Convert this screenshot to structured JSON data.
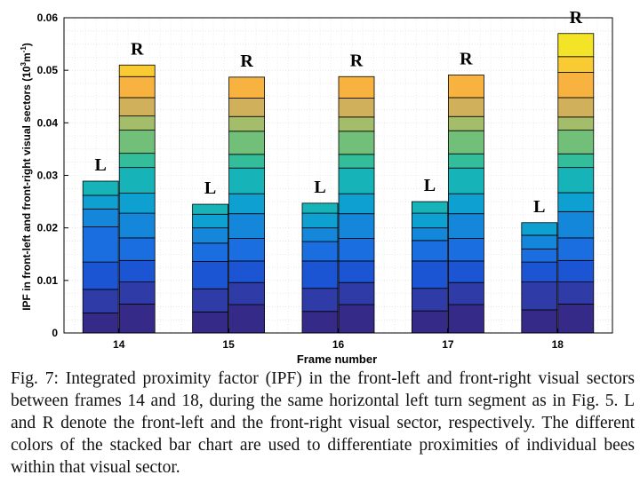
{
  "chart_data": {
    "type": "bar",
    "stacked": true,
    "grouped": true,
    "xlabel": "Frame number",
    "ylabel_main": "IPF in front-left and front-right visual sectors (10",
    "ylabel_sup1": "3",
    "ylabel_mid": "m",
    "ylabel_sup2": "-1",
    "ylabel_end": ")",
    "ylim": [
      0,
      0.06
    ],
    "yticks": [
      "0",
      "0.01",
      "0.02",
      "0.03",
      "0.04",
      "0.05",
      "0.06"
    ],
    "ytick_values": [
      0,
      0.01,
      0.02,
      0.03,
      0.04,
      0.05,
      0.06
    ],
    "grid": true,
    "categories": [
      "14",
      "15",
      "16",
      "17",
      "18"
    ],
    "colors": [
      "#352a87",
      "#2f3ba6",
      "#1b55d3",
      "#1a6ee0",
      "#1487db",
      "#0da0d0",
      "#16b3b8",
      "#34bd9b",
      "#71bf79",
      "#a3bd6a",
      "#d0b05a",
      "#f7b23f",
      "#f9cb32",
      "#f4e427",
      "#f9fb0e"
    ],
    "groups": [
      {
        "frame": "14",
        "bars": [
          {
            "label": "L",
            "segments": [
              0.0038,
              0.0045,
              0.0052,
              0.0067,
              0.0034,
              0.0026,
              0.0027
            ]
          },
          {
            "label": "R",
            "segments": [
              0.0055,
              0.0042,
              0.0041,
              0.0043,
              0.0047,
              0.0038,
              0.0049,
              0.0027,
              0.0044,
              0.0027,
              0.0035,
              0.004,
              0.0022
            ]
          }
        ]
      },
      {
        "frame": "15",
        "bars": [
          {
            "label": "L",
            "segments": [
              0.004,
              0.0044,
              0.0052,
              0.0035,
              0.0029,
              0.0026,
              0.0019
            ]
          },
          {
            "label": "R",
            "segments": [
              0.0054,
              0.0042,
              0.0041,
              0.0043,
              0.0047,
              0.0038,
              0.0049,
              0.0026,
              0.0044,
              0.0028,
              0.0035,
              0.004
            ]
          }
        ]
      },
      {
        "frame": "16",
        "bars": [
          {
            "label": "L",
            "segments": [
              0.0041,
              0.0044,
              0.0052,
              0.0037,
              0.0026,
              0.0028,
              0.0019
            ]
          },
          {
            "label": "R",
            "segments": [
              0.0054,
              0.0042,
              0.0041,
              0.0043,
              0.0047,
              0.0038,
              0.0049,
              0.0026,
              0.0044,
              0.0027,
              0.0036,
              0.0041
            ]
          }
        ]
      },
      {
        "frame": "17",
        "bars": [
          {
            "label": "L",
            "segments": [
              0.0042,
              0.0043,
              0.0052,
              0.0039,
              0.0024,
              0.0028,
              0.0022
            ]
          },
          {
            "label": "R",
            "segments": [
              0.0054,
              0.0042,
              0.0041,
              0.0043,
              0.0047,
              0.0038,
              0.0049,
              0.0027,
              0.0044,
              0.0027,
              0.0036,
              0.0043
            ]
          }
        ]
      },
      {
        "frame": "18",
        "bars": [
          {
            "label": "L",
            "segments": [
              0.0044,
              0.0053,
              0.0038,
              0.0025,
              0.0026,
              0.0024
            ]
          },
          {
            "label": "R",
            "segments": [
              0.0055,
              0.0042,
              0.0041,
              0.0043,
              0.005,
              0.0036,
              0.0048,
              0.0026,
              0.0045,
              0.0025,
              0.0037,
              0.0048,
              0.003,
              0.0044
            ]
          }
        ]
      }
    ]
  },
  "caption": "Fig. 7: Integrated proximity factor (IPF) in the front-left and front-right visual sectors between frames 14 and 18, during the same horizontal left turn segment as in Fig. 5. L and R denote the front-left and the front-right visual sector, respectively. The different colors of the stacked bar chart are used to differentiate proximities of individual bees within that visual sector."
}
